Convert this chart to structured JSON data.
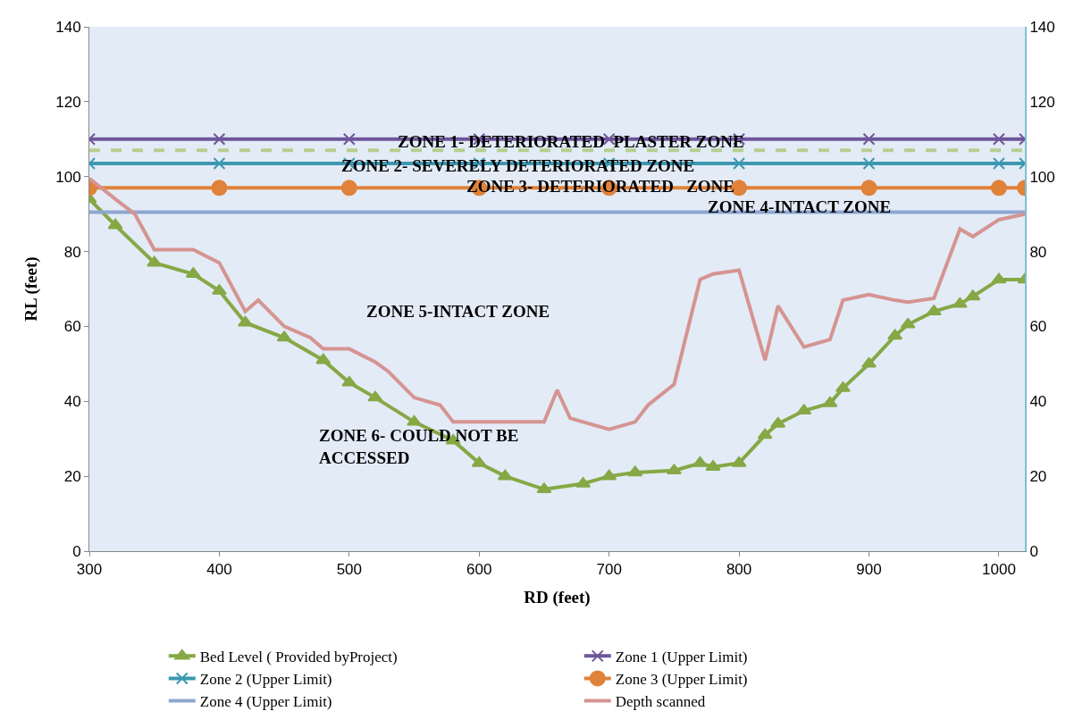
{
  "chart_data": {
    "type": "line",
    "xlabel": "RD (feet)",
    "ylabel": "RL (feet)",
    "xlim": [
      300,
      1020
    ],
    "xticks": [
      300,
      400,
      500,
      600,
      700,
      800,
      900,
      1000
    ],
    "ylim": [
      0,
      140
    ],
    "yticks": [
      0,
      20,
      40,
      60,
      80,
      100,
      120,
      140
    ],
    "y2lim": [
      0,
      140
    ],
    "y2ticks": [
      0,
      20,
      40,
      60,
      80,
      100,
      120,
      140
    ],
    "grid": false,
    "legend": "bottom",
    "series": [
      {
        "name": "Bed Level ( Provided byProject)",
        "color": "#86a845",
        "marker": "triangle",
        "x": [
          300,
          320,
          350,
          380,
          400,
          420,
          450,
          480,
          500,
          520,
          550,
          580,
          600,
          620,
          650,
          680,
          700,
          720,
          750,
          770,
          780,
          800,
          820,
          830,
          850,
          870,
          880,
          900,
          920,
          930,
          950,
          970,
          980,
          1000,
          1020
        ],
        "values": [
          94,
          87,
          77,
          74,
          69.5,
          61,
          57,
          51,
          45,
          41,
          34.5,
          29.5,
          23.5,
          20,
          16.5,
          18,
          20,
          21,
          21.5,
          23.5,
          22.5,
          23.5,
          31,
          34,
          37.5,
          39.5,
          43.5,
          50,
          57.5,
          60.5,
          64,
          66,
          68,
          72.5,
          72.5
        ]
      },
      {
        "name": "Zone 1 (Upper Limit)",
        "color": "#6f559a",
        "marker": "cross",
        "x": [
          300,
          400,
          500,
          600,
          700,
          800,
          900,
          1000,
          1020
        ],
        "values": [
          110,
          110,
          110,
          110,
          110,
          110,
          110,
          110,
          110
        ]
      },
      {
        "name": "Zone 2 (Upper Limit)",
        "color": "#3c98b0",
        "marker": "cross",
        "x": [
          300,
          400,
          500,
          600,
          700,
          800,
          900,
          1000,
          1020
        ],
        "values": [
          103.5,
          103.5,
          103.5,
          103.5,
          103.5,
          103.5,
          103.5,
          103.5,
          103.5
        ]
      },
      {
        "name": "Zone 3 (Upper Limit)",
        "color": "#e0823a",
        "marker": "circle",
        "x": [
          300,
          400,
          500,
          600,
          700,
          800,
          900,
          1000,
          1020
        ],
        "values": [
          97,
          97,
          97,
          97,
          97,
          97,
          97,
          97,
          97
        ]
      },
      {
        "name": "Zone 4 (Upper Limit)",
        "color": "#8ea7cf",
        "marker": "none",
        "x": [
          300,
          400,
          500,
          600,
          700,
          800,
          900,
          1000,
          1020
        ],
        "values": [
          90.5,
          90.5,
          90.5,
          90.5,
          90.5,
          90.5,
          90.5,
          90.5,
          90.5
        ]
      },
      {
        "name": "Depth scanned",
        "color": "#d59491",
        "marker": "none",
        "x": [
          300,
          320,
          335,
          350,
          380,
          400,
          420,
          430,
          450,
          470,
          480,
          500,
          520,
          530,
          550,
          570,
          580,
          600,
          650,
          660,
          670,
          680,
          700,
          720,
          730,
          750,
          770,
          780,
          800,
          820,
          830,
          850,
          870,
          880,
          900,
          920,
          930,
          950,
          970,
          980,
          1000,
          1020
        ],
        "values": [
          99.5,
          94,
          90,
          80.5,
          80.5,
          77,
          64,
          67,
          60,
          57,
          54,
          54,
          50.5,
          48,
          41,
          39,
          34.5,
          34.5,
          34.5,
          43,
          35.5,
          34.5,
          32.5,
          34.5,
          39,
          44.5,
          72.5,
          74,
          75,
          51,
          65.5,
          54.5,
          56.5,
          67,
          68.5,
          67,
          66.5,
          67.5,
          86,
          84,
          88.5,
          90
        ]
      }
    ],
    "ref_lines": [
      {
        "axis": "y",
        "value": 107,
        "color": "#b5cf8f",
        "line_style": "dashed"
      }
    ],
    "annotations": [
      "ZONE 1- DETERIORATED  PLASTER ZONE",
      "ZONE 2- SEVERELY DETERIORATED ZONE",
      "ZONE 3- DETERIORATED   ZONE",
      "ZONE 4-INTACT ZONE",
      "ZONE 5-INTACT ZONE",
      "ZONE 6- COULD NOT BE\nACCESSED"
    ]
  }
}
